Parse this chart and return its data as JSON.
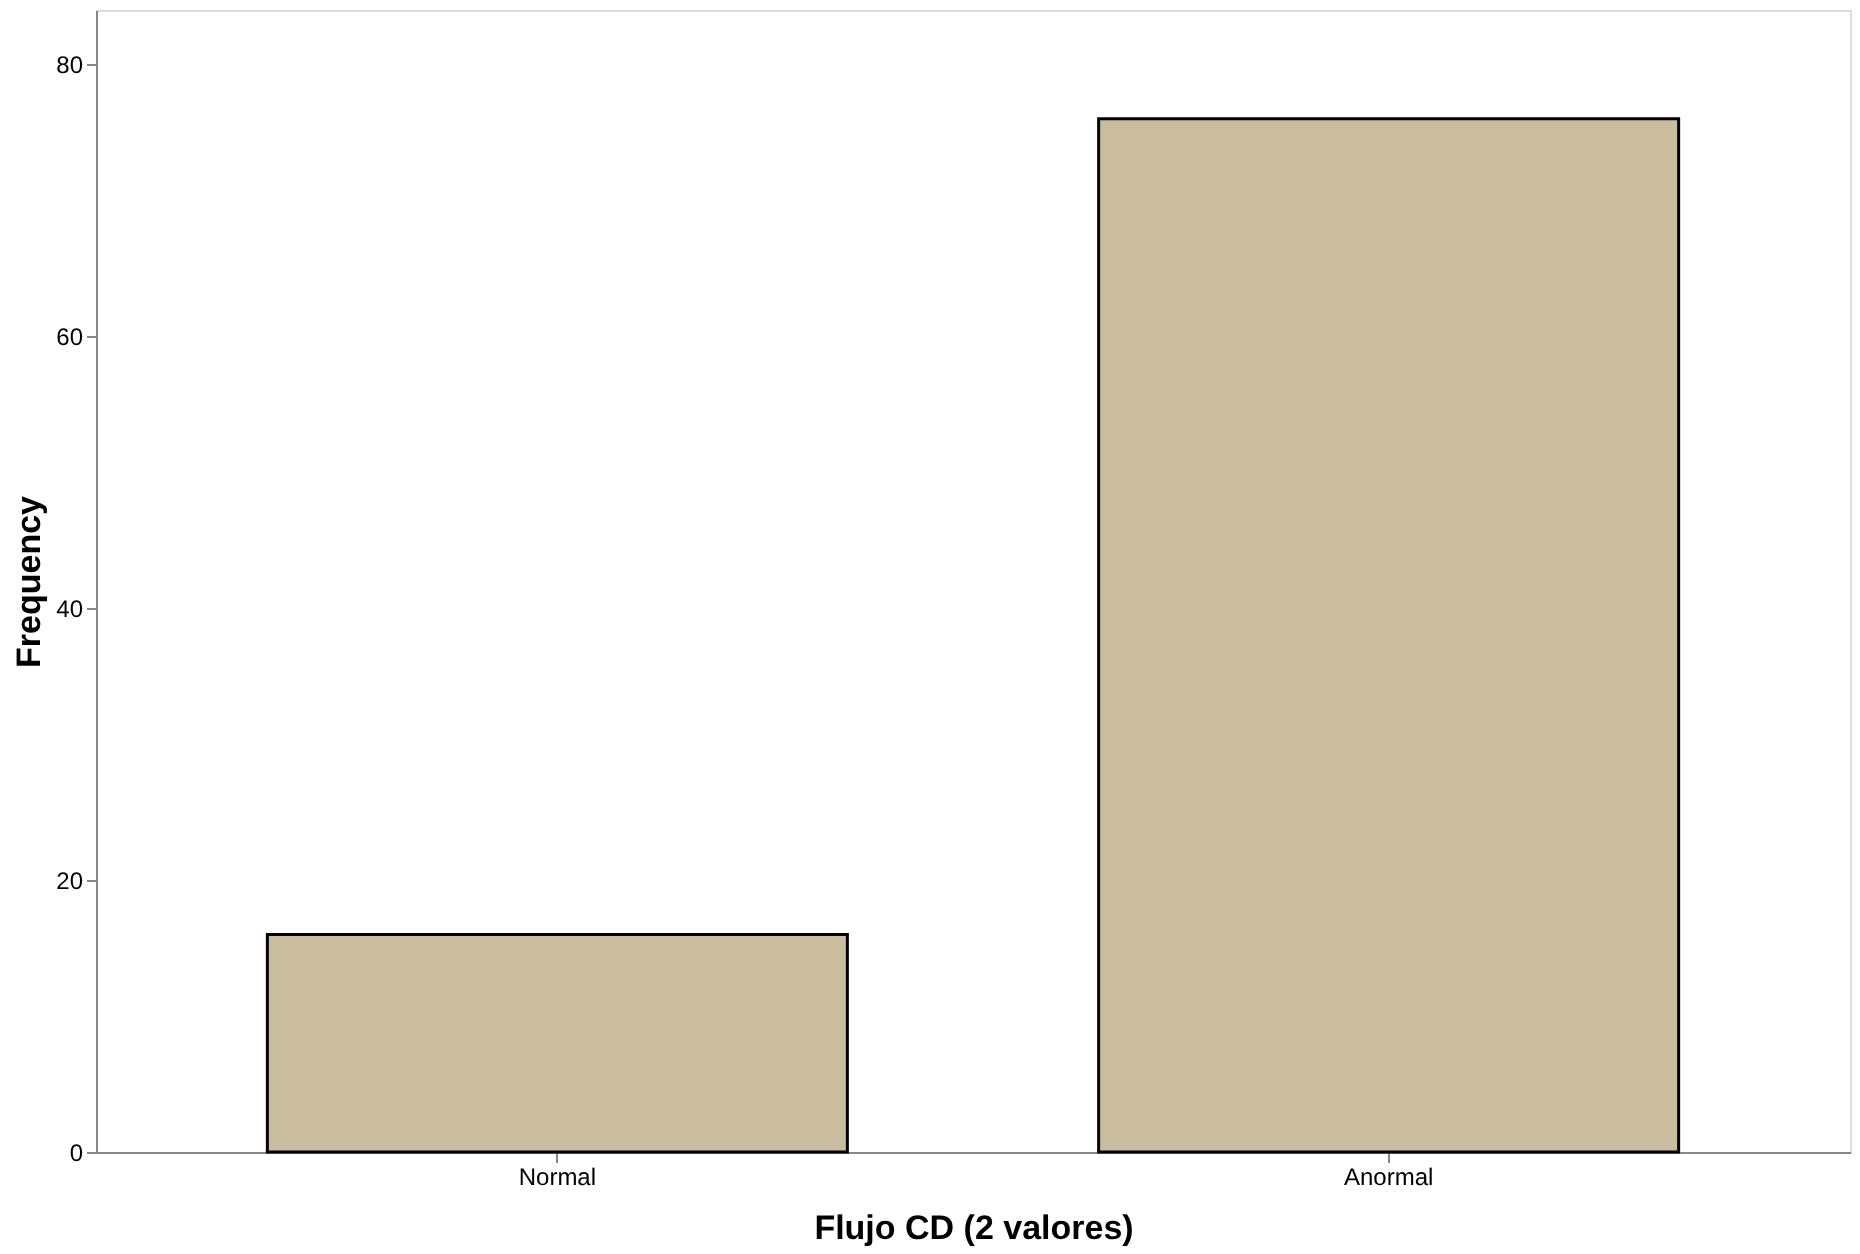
{
  "chart_data": {
    "type": "bar",
    "xlabel": "Flujo CD (2 valores)",
    "ylabel": "Frequency",
    "categories": [
      "Normal",
      "Anormal"
    ],
    "values": [
      16,
      76
    ],
    "color": "#c9bd9d",
    "ylim": [
      0,
      84
    ],
    "yticks": [
      0,
      20,
      40,
      60,
      80
    ],
    "grid": false
  }
}
